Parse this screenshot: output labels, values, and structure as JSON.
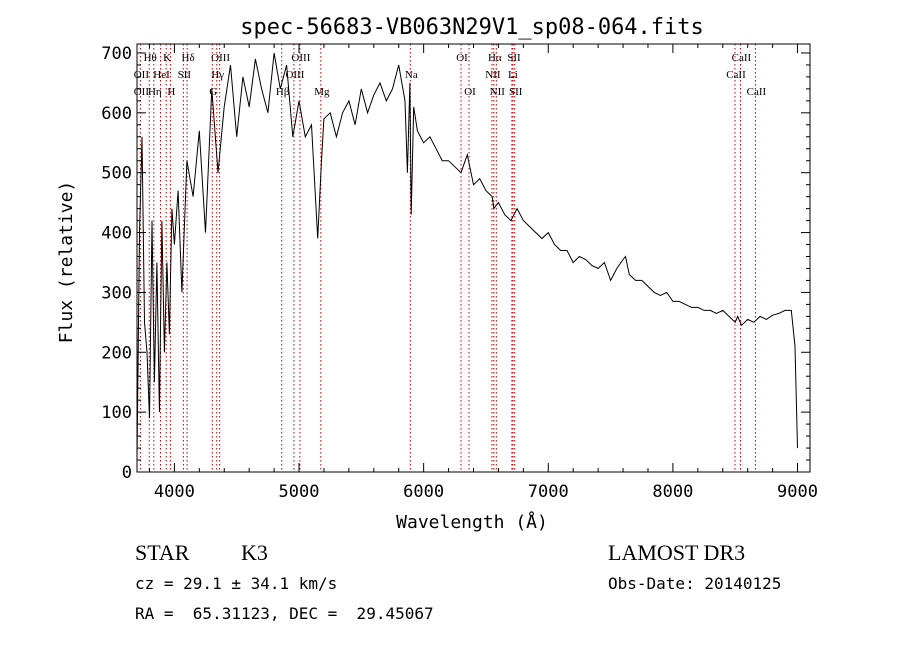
{
  "chart_data": {
    "type": "line",
    "title": "spec-56683-VB063N29V1_sp08-064.fits",
    "xlabel": "Wavelength (Å)",
    "ylabel": "Flux (relative)",
    "xlim": [
      3700,
      9100
    ],
    "ylim": [
      0,
      715
    ],
    "x_ticks": [
      4000,
      5000,
      6000,
      7000,
      8000,
      9000
    ],
    "x_tick_labels": [
      "4000",
      "5000",
      "6000",
      "7000",
      "8000",
      "9000"
    ],
    "y_ticks": [
      0,
      100,
      200,
      300,
      400,
      500,
      600,
      700
    ],
    "y_tick_labels": [
      "0",
      "100",
      "200",
      "300",
      "400",
      "500",
      "600",
      "700"
    ],
    "spectrum": {
      "name": "flux",
      "x": [
        3700,
        3720,
        3740,
        3760,
        3780,
        3800,
        3820,
        3840,
        3860,
        3880,
        3900,
        3920,
        3940,
        3960,
        3980,
        4000,
        4030,
        4060,
        4100,
        4150,
        4200,
        4250,
        4300,
        4350,
        4400,
        4450,
        4500,
        4550,
        4600,
        4650,
        4700,
        4750,
        4800,
        4850,
        4900,
        4950,
        5000,
        5050,
        5100,
        5150,
        5180,
        5200,
        5250,
        5300,
        5350,
        5400,
        5450,
        5500,
        5550,
        5600,
        5650,
        5700,
        5750,
        5800,
        5850,
        5870,
        5890,
        5900,
        5920,
        5950,
        6000,
        6050,
        6100,
        6150,
        6200,
        6250,
        6300,
        6350,
        6400,
        6450,
        6500,
        6550,
        6563,
        6600,
        6650,
        6700,
        6750,
        6800,
        6850,
        6900,
        6950,
        7000,
        7050,
        7100,
        7150,
        7200,
        7250,
        7300,
        7350,
        7400,
        7450,
        7500,
        7550,
        7600,
        7620,
        7650,
        7700,
        7750,
        7800,
        7850,
        7900,
        7950,
        8000,
        8050,
        8100,
        8150,
        8200,
        8250,
        8300,
        8350,
        8400,
        8450,
        8500,
        8520,
        8550,
        8600,
        8650,
        8700,
        8750,
        8800,
        8850,
        8900,
        8950,
        8980,
        9000
      ],
      "y": [
        20,
        400,
        560,
        250,
        200,
        90,
        420,
        150,
        350,
        100,
        420,
        200,
        350,
        230,
        440,
        380,
        470,
        300,
        520,
        460,
        570,
        400,
        640,
        500,
        610,
        680,
        560,
        660,
        610,
        690,
        640,
        600,
        700,
        640,
        680,
        560,
        620,
        560,
        580,
        390,
        520,
        590,
        600,
        560,
        600,
        620,
        580,
        640,
        600,
        630,
        650,
        620,
        640,
        680,
        620,
        500,
        650,
        430,
        610,
        570,
        550,
        560,
        540,
        520,
        520,
        510,
        500,
        530,
        480,
        490,
        470,
        460,
        440,
        450,
        430,
        420,
        440,
        420,
        410,
        400,
        390,
        400,
        380,
        370,
        370,
        350,
        360,
        355,
        345,
        340,
        350,
        320,
        340,
        355,
        360,
        330,
        320,
        320,
        310,
        300,
        295,
        300,
        285,
        285,
        280,
        275,
        275,
        270,
        270,
        265,
        270,
        260,
        250,
        260,
        245,
        255,
        250,
        260,
        255,
        262,
        265,
        270,
        270,
        210,
        40
      ]
    },
    "lines": [
      {
        "label": "Hθ",
        "x": 3798,
        "row": 0
      },
      {
        "label": "OII",
        "x": 3727,
        "row": 1
      },
      {
        "label": "OII",
        "x": 3727,
        "row": 2
      },
      {
        "label": "Hη",
        "x": 3835,
        "row": 2
      },
      {
        "label": "K",
        "x": 3934,
        "row": 0
      },
      {
        "label": "HeI",
        "x": 3889,
        "row": 1
      },
      {
        "label": "H",
        "x": 3968,
        "row": 2
      },
      {
        "label": "SII",
        "x": 4072,
        "row": 1
      },
      {
        "label": "Hδ",
        "x": 4102,
        "row": 0
      },
      {
        "label": "OIII",
        "x": 4363,
        "row": 0
      },
      {
        "label": "Hγ",
        "x": 4340,
        "row": 1
      },
      {
        "label": "G",
        "x": 4304,
        "row": 2
      },
      {
        "label": "OIII",
        "x": 5007,
        "row": 0
      },
      {
        "label": "OIII",
        "x": 4959,
        "row": 1
      },
      {
        "label": "Hβ",
        "x": 4861,
        "row": 2
      },
      {
        "label": "Mg",
        "x": 5175,
        "row": 2
      },
      {
        "label": "Na",
        "x": 5893,
        "row": 1
      },
      {
        "label": "OI",
        "x": 6300,
        "row": 0
      },
      {
        "label": "OI",
        "x": 6364,
        "row": 2
      },
      {
        "label": "Hα",
        "x": 6563,
        "row": 0
      },
      {
        "label": "NII",
        "x": 6548,
        "row": 1
      },
      {
        "label": "NII",
        "x": 6583,
        "row": 2
      },
      {
        "label": "SII",
        "x": 6717,
        "row": 0
      },
      {
        "label": "Li",
        "x": 6708,
        "row": 1
      },
      {
        "label": "SII",
        "x": 6731,
        "row": 2
      },
      {
        "label": "CaII",
        "x": 8542,
        "row": 0
      },
      {
        "label": "CaII",
        "x": 8498,
        "row": 1
      },
      {
        "label": "CaII",
        "x": 8662,
        "row": 2
      }
    ]
  },
  "footer": {
    "object_class": "STAR",
    "subclass": "K3",
    "survey": "LAMOST DR3",
    "redshift": "cz = 29.1 ± 34.1 km/s",
    "obs_date": "Obs-Date: 20140125",
    "coords": "RA =  65.31123, DEC =  29.45067"
  },
  "colors": {
    "axis": "#000000",
    "line_marker": "#c00000",
    "spectrum": "#000000",
    "background": "#ffffff"
  }
}
